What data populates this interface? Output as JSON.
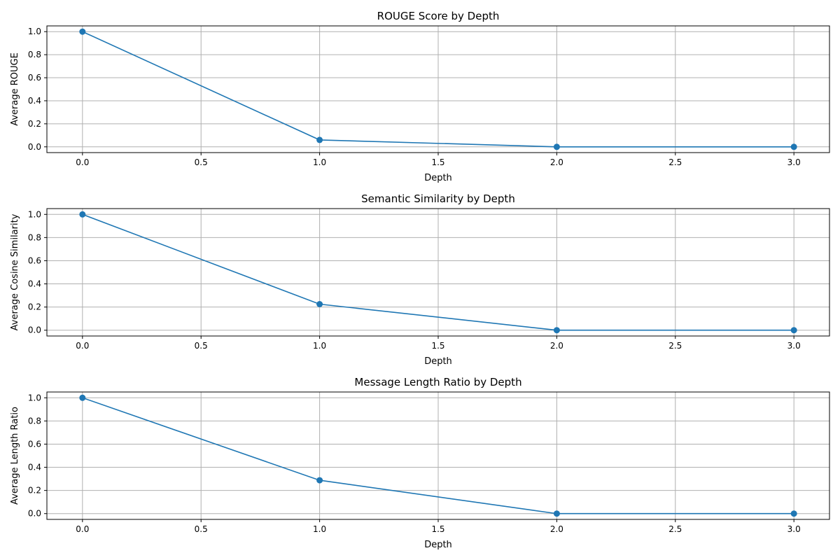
{
  "chart_data": [
    {
      "type": "line",
      "title": "ROUGE Score by Depth",
      "xlabel": "Depth",
      "ylabel": "Average ROUGE",
      "xlim": [
        -0.15,
        3.15
      ],
      "ylim": [
        -0.05,
        1.05
      ],
      "xticks": [
        "0.0",
        "0.5",
        "1.0",
        "1.5",
        "2.0",
        "2.5",
        "3.0"
      ],
      "yticks": [
        "0.0",
        "0.2",
        "0.4",
        "0.6",
        "0.8",
        "1.0"
      ],
      "grid": true,
      "series": [
        {
          "x": [
            0,
            1,
            2,
            3
          ],
          "y": [
            1.0,
            0.06,
            0.0,
            0.0
          ],
          "color": "#1f77b4",
          "marker": "circle"
        }
      ]
    },
    {
      "type": "line",
      "title": "Semantic Similarity by Depth",
      "xlabel": "Depth",
      "ylabel": "Average Cosine Similarity",
      "xlim": [
        -0.15,
        3.15
      ],
      "ylim": [
        -0.05,
        1.05
      ],
      "xticks": [
        "0.0",
        "0.5",
        "1.0",
        "1.5",
        "2.0",
        "2.5",
        "3.0"
      ],
      "yticks": [
        "0.0",
        "0.2",
        "0.4",
        "0.6",
        "0.8",
        "1.0"
      ],
      "grid": true,
      "series": [
        {
          "x": [
            0,
            1,
            2,
            3
          ],
          "y": [
            1.0,
            0.225,
            0.0,
            0.0
          ],
          "color": "#1f77b4",
          "marker": "circle"
        }
      ]
    },
    {
      "type": "line",
      "title": "Message Length Ratio by Depth",
      "xlabel": "Depth",
      "ylabel": "Average Length Ratio",
      "xlim": [
        -0.15,
        3.15
      ],
      "ylim": [
        -0.05,
        1.05
      ],
      "xticks": [
        "0.0",
        "0.5",
        "1.0",
        "1.5",
        "2.0",
        "2.5",
        "3.0"
      ],
      "yticks": [
        "0.0",
        "0.2",
        "0.4",
        "0.6",
        "0.8",
        "1.0"
      ],
      "grid": true,
      "series": [
        {
          "x": [
            0,
            1,
            2,
            3
          ],
          "y": [
            1.0,
            0.288,
            0.0,
            0.0
          ],
          "color": "#1f77b4",
          "marker": "circle"
        }
      ]
    }
  ]
}
